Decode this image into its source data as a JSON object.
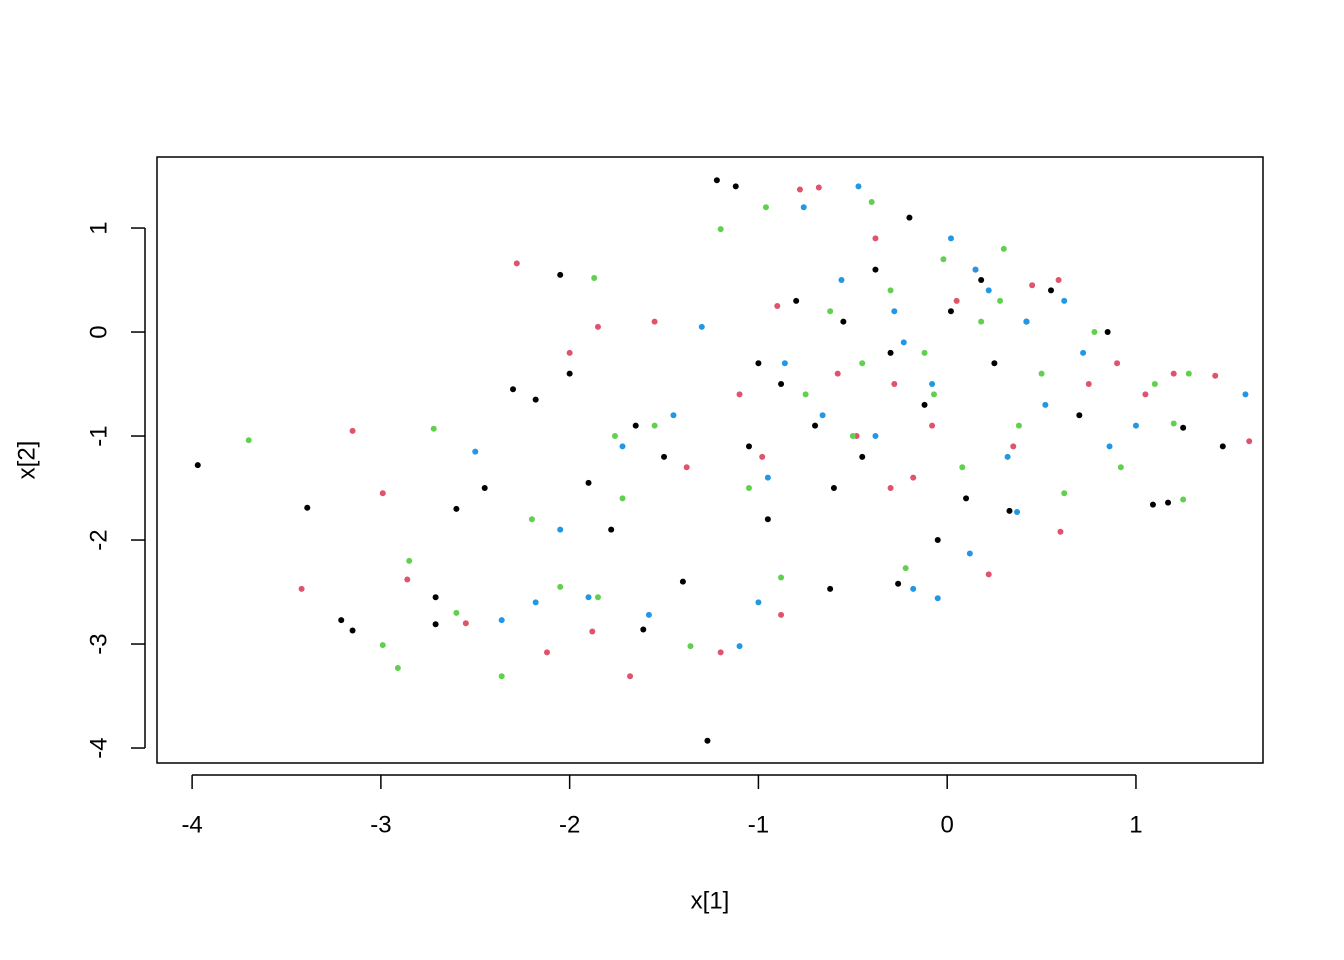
{
  "chart_data": {
    "type": "scatter",
    "xlabel": "x[1]",
    "ylabel": "x[2]",
    "xlim": [
      -4.186,
      1.673
    ],
    "ylim": [
      -4.144,
      1.683
    ],
    "xticks": [
      -4,
      -3,
      -2,
      -1,
      0,
      1
    ],
    "yticks": [
      -4,
      -3,
      -2,
      -1,
      0,
      1
    ],
    "grid": false,
    "series": [
      {
        "color": "#000000",
        "x": [
          -3.97,
          -3.39,
          -3.21,
          -3.15,
          -2.71,
          -2.71,
          -2.6,
          -2.45,
          -2.3,
          -2.18,
          -2.05,
          -2.0,
          -1.9,
          -1.78,
          -1.65,
          -1.61,
          -1.5,
          -1.4,
          -1.27,
          -1.22,
          -1.12,
          -1.05,
          -0.95,
          -0.88,
          -0.8,
          -0.7,
          -0.62,
          -0.55,
          -0.45,
          -0.38,
          -0.3,
          -0.26,
          -0.2,
          -0.12,
          -0.05,
          0.02,
          0.1,
          0.18,
          0.25,
          0.33,
          0.42,
          0.55,
          0.7,
          0.85,
          1.09,
          1.17,
          1.25,
          1.46,
          -1.0,
          -0.6
        ],
        "values": [
          -1.28,
          -1.69,
          -2.77,
          -2.87,
          -2.81,
          -2.55,
          -1.7,
          -1.5,
          -0.55,
          -0.65,
          0.55,
          -0.4,
          -1.45,
          -1.9,
          -0.9,
          -2.86,
          -1.2,
          -2.4,
          -3.93,
          1.46,
          1.4,
          -1.1,
          -1.8,
          -0.5,
          0.3,
          -0.9,
          -2.47,
          0.1,
          -1.2,
          0.6,
          -0.2,
          -2.42,
          1.1,
          -0.7,
          -2.0,
          0.2,
          -1.6,
          0.5,
          -0.3,
          -1.72,
          0.1,
          0.4,
          -0.8,
          0.0,
          -1.66,
          -1.64,
          -0.92,
          -1.1,
          -0.3,
          -1.5
        ]
      },
      {
        "color": "#DF536B",
        "x": [
          -3.42,
          -3.15,
          -2.99,
          -2.86,
          -2.55,
          -2.28,
          -2.12,
          -2.0,
          -1.88,
          -1.68,
          -1.55,
          -1.38,
          -1.2,
          -1.1,
          -0.98,
          -0.88,
          -0.78,
          -0.68,
          -0.58,
          -0.48,
          -0.38,
          -0.28,
          -0.18,
          -0.08,
          0.05,
          0.15,
          0.22,
          0.35,
          0.45,
          0.6,
          0.75,
          0.9,
          1.05,
          1.2,
          1.42,
          1.6,
          -1.85,
          -0.9,
          -0.3,
          0.59
        ],
        "values": [
          -2.47,
          -0.95,
          -1.55,
          -2.38,
          -2.8,
          0.66,
          -3.08,
          -0.2,
          -2.88,
          -3.31,
          0.1,
          -1.3,
          -3.08,
          -0.6,
          -1.2,
          -2.72,
          1.37,
          1.39,
          -0.4,
          -1.0,
          0.9,
          -0.5,
          -1.4,
          -0.9,
          0.3,
          0.6,
          -2.33,
          -1.1,
          0.45,
          -1.92,
          -0.5,
          -0.3,
          -0.6,
          -0.4,
          -0.42,
          -1.05,
          0.05,
          0.25,
          -1.5,
          0.5
        ]
      },
      {
        "color": "#61D04F",
        "x": [
          -3.7,
          -2.99,
          -2.91,
          -2.85,
          -2.72,
          -2.6,
          -2.36,
          -2.2,
          -2.05,
          -1.87,
          -1.85,
          -1.72,
          -1.55,
          -1.36,
          -1.2,
          -1.05,
          -0.96,
          -0.88,
          -0.75,
          -0.62,
          -0.5,
          -0.4,
          -0.3,
          -0.22,
          -0.12,
          -0.02,
          0.08,
          0.18,
          0.28,
          0.38,
          0.5,
          0.62,
          0.78,
          0.92,
          1.1,
          1.25,
          1.28,
          1.2,
          -1.76,
          -0.45,
          0.3,
          -0.07
        ],
        "values": [
          -1.04,
          -3.01,
          -3.23,
          -2.2,
          -0.93,
          -2.7,
          -3.31,
          -1.8,
          -2.45,
          0.52,
          -2.55,
          -1.6,
          -0.9,
          -3.02,
          0.99,
          -1.5,
          1.2,
          -2.36,
          -0.6,
          0.2,
          -1.0,
          1.25,
          0.4,
          -2.27,
          -0.2,
          0.7,
          -1.3,
          0.1,
          0.3,
          -0.9,
          -0.4,
          -1.55,
          0.0,
          -1.3,
          -0.5,
          -1.61,
          -0.4,
          -0.88,
          -1.0,
          -0.3,
          0.8,
          -0.6
        ]
      },
      {
        "color": "#2297E6",
        "x": [
          -2.5,
          -2.36,
          -2.18,
          -2.05,
          -1.9,
          -1.72,
          -1.58,
          -1.45,
          -1.3,
          -1.1,
          -1.0,
          -0.95,
          -0.86,
          -0.76,
          -0.66,
          -0.56,
          -0.47,
          -0.38,
          -0.28,
          -0.18,
          -0.08,
          0.02,
          0.12,
          0.22,
          0.32,
          0.42,
          0.52,
          0.62,
          0.72,
          0.86,
          1.0,
          1.58,
          -0.05,
          0.37,
          -0.23,
          0.15
        ],
        "values": [
          -1.15,
          -2.77,
          -2.6,
          -1.9,
          -2.55,
          -1.1,
          -2.72,
          -0.8,
          0.05,
          -3.02,
          -2.6,
          -1.4,
          -0.3,
          1.2,
          -0.8,
          0.5,
          1.4,
          -1.0,
          0.2,
          -2.47,
          -0.5,
          0.9,
          -2.13,
          0.4,
          -1.2,
          0.1,
          -0.7,
          0.3,
          -0.2,
          -1.1,
          -0.9,
          -0.6,
          -2.56,
          -1.73,
          -0.1,
          0.6
        ]
      }
    ]
  }
}
